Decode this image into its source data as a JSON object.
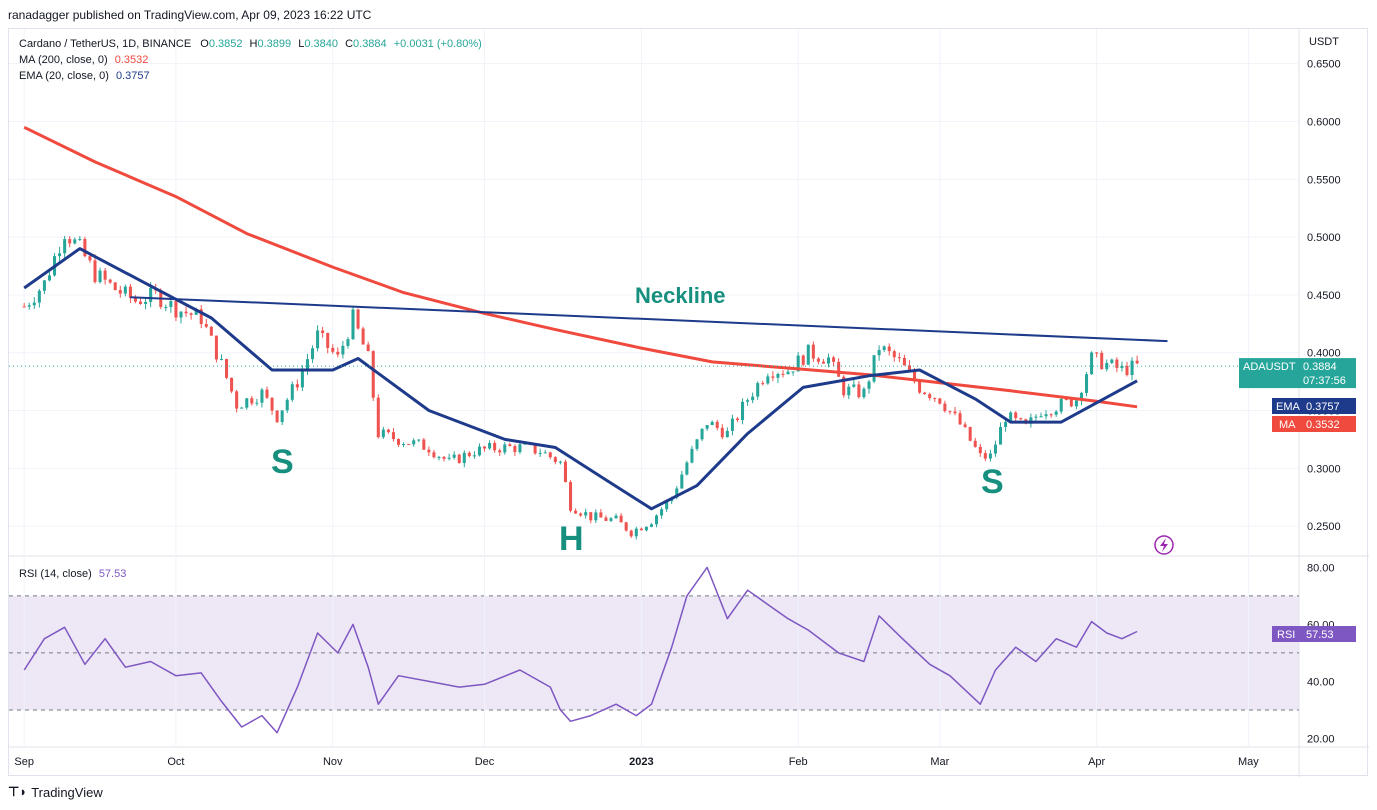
{
  "publisher": "ranadagger published on TradingView.com, Apr 09, 2023 16:22 UTC",
  "footer": {
    "brand": "TradingView",
    "logo_icon": "tradingview-logo-icon"
  },
  "legend": {
    "symbol": "Cardano / TetherUS, 1D, BINANCE",
    "open_label": "O",
    "open": "0.3852",
    "high_label": "H",
    "high": "0.3899",
    "low_label": "L",
    "low": "0.3840",
    "close_label": "C",
    "close": "0.3884",
    "change": "+0.0031 (+0.80%)",
    "ma_label": "MA (200, close, 0)",
    "ma_value": "0.3532",
    "ema_label": "EMA (20, close, 0)",
    "ema_value": "0.3757",
    "rsi_label": "RSI (14, close)",
    "rsi_value": "57.53"
  },
  "annotations": {
    "neckline": "Neckline",
    "left_shoulder": "S",
    "head": "H",
    "right_shoulder": "S"
  },
  "badges": {
    "price_symbol": "ADAUSDT",
    "price_value": "0.3884",
    "countdown": "07:37:56",
    "ema_name": "EMA",
    "ema_value": "0.3757",
    "ma_name": "MA",
    "ma_value": "0.3532",
    "rsi_name": "RSI",
    "rsi_value": "57.53"
  },
  "axis": {
    "currency": "USDT",
    "price_ticks": [
      "0.2500",
      "0.3000",
      "0.3500",
      "0.4000",
      "0.4500",
      "0.5000",
      "0.5500",
      "0.6000",
      "0.6500"
    ],
    "rsi_ticks": [
      "20.00",
      "40.00",
      "60.00",
      "80.00"
    ],
    "time_ticks": [
      "Sep",
      "Oct",
      "Nov",
      "Dec",
      "2023",
      "Feb",
      "Mar",
      "Apr",
      "May"
    ]
  },
  "colors": {
    "up": "#26a69a",
    "down": "#ef5350",
    "ma": "#f0493e",
    "ema": "#1e3a8a",
    "neckline": "#1e3a8a",
    "rsi": "#7e57c2",
    "rsi_band": "#ede7f6",
    "label_teal": "#168f7f"
  },
  "chart_data": [
    {
      "type": "candlestick",
      "title": "Cardano / TetherUS, 1D, BINANCE",
      "x_start": "2022-09-01",
      "x_end": "2023-04-09",
      "x_axis_end": "2023-05-01",
      "ylim": [
        0.225,
        0.68
      ],
      "closes_weekly": [
        {
          "date": "2022-09-01",
          "close": 0.44
        },
        {
          "date": "2022-09-05",
          "close": 0.46
        },
        {
          "date": "2022-09-09",
          "close": 0.505
        },
        {
          "date": "2022-09-12",
          "close": 0.49
        },
        {
          "date": "2022-09-15",
          "close": 0.468
        },
        {
          "date": "2022-09-19",
          "close": 0.455
        },
        {
          "date": "2022-09-23",
          "close": 0.445
        },
        {
          "date": "2022-09-27",
          "close": 0.45
        },
        {
          "date": "2022-10-01",
          "close": 0.438
        },
        {
          "date": "2022-10-06",
          "close": 0.43
        },
        {
          "date": "2022-10-10",
          "close": 0.39
        },
        {
          "date": "2022-10-13",
          "close": 0.355
        },
        {
          "date": "2022-10-18",
          "close": 0.365
        },
        {
          "date": "2022-10-21",
          "close": 0.345
        },
        {
          "date": "2022-10-25",
          "close": 0.375
        },
        {
          "date": "2022-10-29",
          "close": 0.415
        },
        {
          "date": "2022-11-02",
          "close": 0.395
        },
        {
          "date": "2022-11-05",
          "close": 0.43
        },
        {
          "date": "2022-11-08",
          "close": 0.395
        },
        {
          "date": "2022-11-10",
          "close": 0.33
        },
        {
          "date": "2022-11-14",
          "close": 0.325
        },
        {
          "date": "2022-11-20",
          "close": 0.318
        },
        {
          "date": "2022-11-24",
          "close": 0.305
        },
        {
          "date": "2022-11-29",
          "close": 0.315
        },
        {
          "date": "2022-12-04",
          "close": 0.318
        },
        {
          "date": "2022-12-08",
          "close": 0.318
        },
        {
          "date": "2022-12-12",
          "close": 0.315
        },
        {
          "date": "2022-12-16",
          "close": 0.305
        },
        {
          "date": "2022-12-18",
          "close": 0.268
        },
        {
          "date": "2022-12-22",
          "close": 0.258
        },
        {
          "date": "2022-12-27",
          "close": 0.255
        },
        {
          "date": "2022-12-30",
          "close": 0.245
        },
        {
          "date": "2023-01-03",
          "close": 0.255
        },
        {
          "date": "2023-01-07",
          "close": 0.275
        },
        {
          "date": "2023-01-10",
          "close": 0.305
        },
        {
          "date": "2023-01-14",
          "close": 0.34
        },
        {
          "date": "2023-01-18",
          "close": 0.33
        },
        {
          "date": "2023-01-22",
          "close": 0.36
        },
        {
          "date": "2023-01-26",
          "close": 0.385
        },
        {
          "date": "2023-01-30",
          "close": 0.385
        },
        {
          "date": "2023-02-03",
          "close": 0.4
        },
        {
          "date": "2023-02-07",
          "close": 0.395
        },
        {
          "date": "2023-02-10",
          "close": 0.368
        },
        {
          "date": "2023-02-14",
          "close": 0.365
        },
        {
          "date": "2023-02-17",
          "close": 0.405
        },
        {
          "date": "2023-02-21",
          "close": 0.392
        },
        {
          "date": "2023-02-25",
          "close": 0.37
        },
        {
          "date": "2023-03-01",
          "close": 0.36
        },
        {
          "date": "2023-03-05",
          "close": 0.338
        },
        {
          "date": "2023-03-09",
          "close": 0.31
        },
        {
          "date": "2023-03-11",
          "close": 0.31
        },
        {
          "date": "2023-03-14",
          "close": 0.345
        },
        {
          "date": "2023-03-18",
          "close": 0.335
        },
        {
          "date": "2023-03-21",
          "close": 0.35
        },
        {
          "date": "2023-03-25",
          "close": 0.355
        },
        {
          "date": "2023-03-28",
          "close": 0.36
        },
        {
          "date": "2023-03-31",
          "close": 0.395
        },
        {
          "date": "2023-04-03",
          "close": 0.39
        },
        {
          "date": "2023-04-06",
          "close": 0.385
        },
        {
          "date": "2023-04-09",
          "close": 0.3884
        }
      ],
      "ma200": [
        {
          "date": "2022-09-01",
          "value": 0.595
        },
        {
          "date": "2022-09-15",
          "value": 0.565
        },
        {
          "date": "2022-10-01",
          "value": 0.535
        },
        {
          "date": "2022-10-15",
          "value": 0.503
        },
        {
          "date": "2022-11-01",
          "value": 0.474
        },
        {
          "date": "2022-11-15",
          "value": 0.452
        },
        {
          "date": "2022-12-01",
          "value": 0.434
        },
        {
          "date": "2022-12-15",
          "value": 0.42
        },
        {
          "date": "2023-01-01",
          "value": 0.404
        },
        {
          "date": "2023-01-15",
          "value": 0.392
        },
        {
          "date": "2023-02-01",
          "value": 0.386
        },
        {
          "date": "2023-02-15",
          "value": 0.381
        },
        {
          "date": "2023-03-01",
          "value": 0.374
        },
        {
          "date": "2023-03-15",
          "value": 0.367
        },
        {
          "date": "2023-04-01",
          "value": 0.358
        },
        {
          "date": "2023-04-09",
          "value": 0.3532
        }
      ],
      "ema20": [
        {
          "date": "2022-09-01",
          "value": 0.456
        },
        {
          "date": "2022-09-12",
          "value": 0.49
        },
        {
          "date": "2022-09-25",
          "value": 0.46
        },
        {
          "date": "2022-10-08",
          "value": 0.43
        },
        {
          "date": "2022-10-20",
          "value": 0.385
        },
        {
          "date": "2022-11-01",
          "value": 0.385
        },
        {
          "date": "2022-11-06",
          "value": 0.395
        },
        {
          "date": "2022-11-20",
          "value": 0.35
        },
        {
          "date": "2022-12-05",
          "value": 0.325
        },
        {
          "date": "2022-12-15",
          "value": 0.318
        },
        {
          "date": "2022-12-25",
          "value": 0.29
        },
        {
          "date": "2023-01-03",
          "value": 0.265
        },
        {
          "date": "2023-01-12",
          "value": 0.285
        },
        {
          "date": "2023-01-22",
          "value": 0.33
        },
        {
          "date": "2023-02-02",
          "value": 0.37
        },
        {
          "date": "2023-02-15",
          "value": 0.38
        },
        {
          "date": "2023-02-25",
          "value": 0.385
        },
        {
          "date": "2023-03-08",
          "value": 0.36
        },
        {
          "date": "2023-03-15",
          "value": 0.34
        },
        {
          "date": "2023-03-25",
          "value": 0.34
        },
        {
          "date": "2023-04-09",
          "value": 0.3757
        }
      ],
      "neckline": [
        {
          "date": "2022-09-22",
          "value": 0.448
        },
        {
          "date": "2023-04-15",
          "value": 0.41
        }
      ]
    },
    {
      "type": "line",
      "title": "RSI (14, close)",
      "ylim": [
        17,
        84
      ],
      "bands": [
        30,
        50,
        70
      ],
      "series": [
        {
          "name": "RSI",
          "values": [
            {
              "date": "2022-09-01",
              "value": 44
            },
            {
              "date": "2022-09-05",
              "value": 55
            },
            {
              "date": "2022-09-09",
              "value": 59
            },
            {
              "date": "2022-09-13",
              "value": 46
            },
            {
              "date": "2022-09-17",
              "value": 55
            },
            {
              "date": "2022-09-21",
              "value": 45
            },
            {
              "date": "2022-09-26",
              "value": 47
            },
            {
              "date": "2022-10-01",
              "value": 42
            },
            {
              "date": "2022-10-06",
              "value": 43
            },
            {
              "date": "2022-10-10",
              "value": 33
            },
            {
              "date": "2022-10-14",
              "value": 24
            },
            {
              "date": "2022-10-18",
              "value": 28
            },
            {
              "date": "2022-10-21",
              "value": 22
            },
            {
              "date": "2022-10-25",
              "value": 38
            },
            {
              "date": "2022-10-29",
              "value": 57
            },
            {
              "date": "2022-11-02",
              "value": 50
            },
            {
              "date": "2022-11-05",
              "value": 60
            },
            {
              "date": "2022-11-08",
              "value": 45
            },
            {
              "date": "2022-11-10",
              "value": 32
            },
            {
              "date": "2022-11-14",
              "value": 42
            },
            {
              "date": "2022-11-20",
              "value": 40
            },
            {
              "date": "2022-11-26",
              "value": 38
            },
            {
              "date": "2022-12-01",
              "value": 39
            },
            {
              "date": "2022-12-08",
              "value": 44
            },
            {
              "date": "2022-12-14",
              "value": 38
            },
            {
              "date": "2022-12-16",
              "value": 30
            },
            {
              "date": "2022-12-18",
              "value": 26
            },
            {
              "date": "2022-12-22",
              "value": 28
            },
            {
              "date": "2022-12-27",
              "value": 32
            },
            {
              "date": "2022-12-31",
              "value": 28
            },
            {
              "date": "2023-01-03",
              "value": 32
            },
            {
              "date": "2023-01-07",
              "value": 52
            },
            {
              "date": "2023-01-10",
              "value": 70
            },
            {
              "date": "2023-01-14",
              "value": 80
            },
            {
              "date": "2023-01-18",
              "value": 62
            },
            {
              "date": "2023-01-22",
              "value": 72
            },
            {
              "date": "2023-01-26",
              "value": 67
            },
            {
              "date": "2023-01-30",
              "value": 62
            },
            {
              "date": "2023-02-03",
              "value": 58
            },
            {
              "date": "2023-02-09",
              "value": 50
            },
            {
              "date": "2023-02-14",
              "value": 47
            },
            {
              "date": "2023-02-17",
              "value": 63
            },
            {
              "date": "2023-02-21",
              "value": 56
            },
            {
              "date": "2023-02-27",
              "value": 46
            },
            {
              "date": "2023-03-03",
              "value": 42
            },
            {
              "date": "2023-03-09",
              "value": 32
            },
            {
              "date": "2023-03-12",
              "value": 44
            },
            {
              "date": "2023-03-16",
              "value": 52
            },
            {
              "date": "2023-03-20",
              "value": 47
            },
            {
              "date": "2023-03-24",
              "value": 55
            },
            {
              "date": "2023-03-28",
              "value": 52
            },
            {
              "date": "2023-03-31",
              "value": 61
            },
            {
              "date": "2023-04-03",
              "value": 57
            },
            {
              "date": "2023-04-06",
              "value": 55
            },
            {
              "date": "2023-04-09",
              "value": 57.53
            }
          ]
        }
      ]
    }
  ]
}
